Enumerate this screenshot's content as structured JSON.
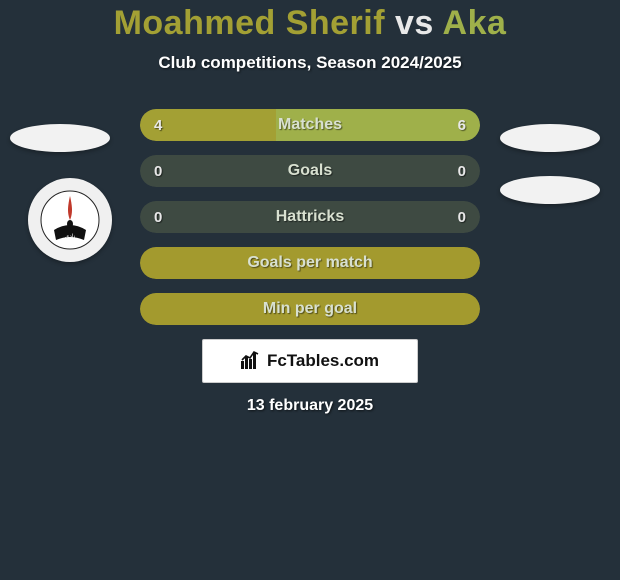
{
  "title": {
    "player1": "Moahmed Sherif",
    "vs": "vs",
    "player2": "Aka",
    "color_player1": "#a3a034",
    "color_vs": "#e8e8e8",
    "color_player2": "#9fb04a"
  },
  "subtitle": "Club competitions, Season 2024/2025",
  "bars": {
    "track_color": "#3e4a42",
    "fill_color_left": "#a3a034",
    "fill_color_right": "#9fb04a",
    "full_color": "#a39a2e",
    "rows": [
      {
        "label": "Matches",
        "left_value": "4",
        "right_value": "6",
        "left_pct": 40,
        "right_pct": 60,
        "show_values": true,
        "full": false
      },
      {
        "label": "Goals",
        "left_value": "0",
        "right_value": "0",
        "left_pct": 0,
        "right_pct": 0,
        "show_values": true,
        "full": false
      },
      {
        "label": "Hattricks",
        "left_value": "0",
        "right_value": "0",
        "left_pct": 0,
        "right_pct": 0,
        "show_values": true,
        "full": false
      },
      {
        "label": "Goals per match",
        "show_values": false,
        "full": true
      },
      {
        "label": "Min per goal",
        "show_values": false,
        "full": true
      }
    ]
  },
  "brand": "FcTables.com",
  "date": "13 february 2025",
  "background_color": "#24303a"
}
